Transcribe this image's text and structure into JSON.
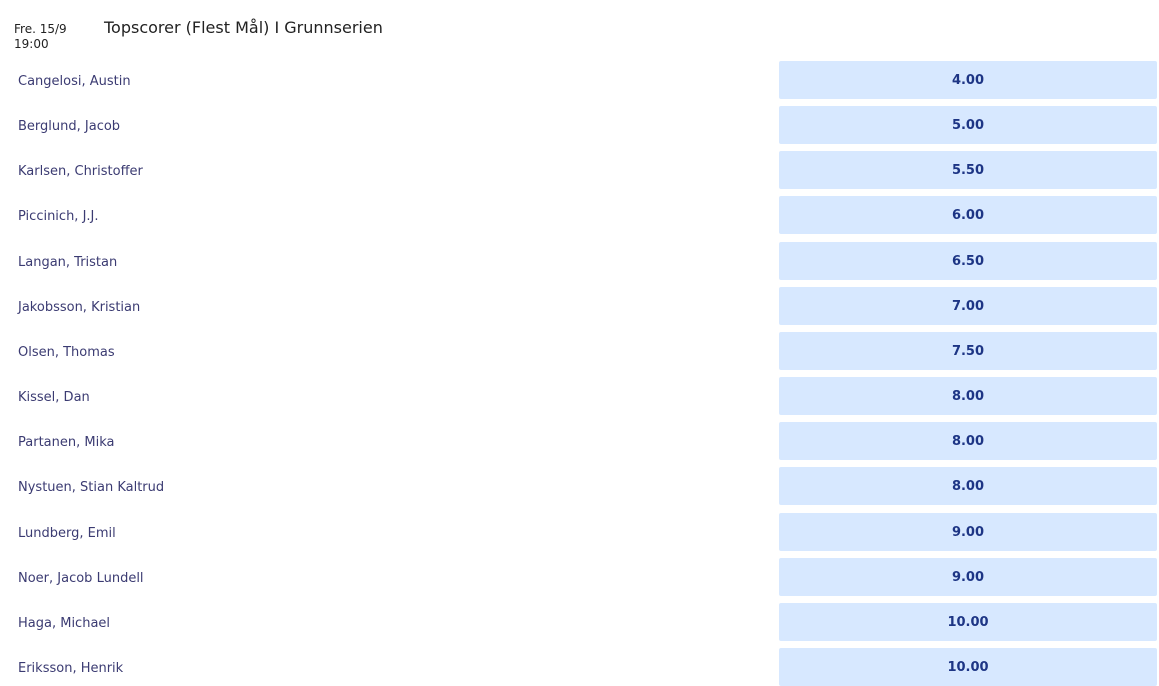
{
  "header": {
    "date": "Fre. 15/9",
    "time": "19:00",
    "title": "Topscorer (Flest Mål) I Grunnserien"
  },
  "rows": [
    {
      "name": "Cangelosi, Austin",
      "odds": "4.00"
    },
    {
      "name": "Berglund, Jacob",
      "odds": "5.00"
    },
    {
      "name": "Karlsen, Christoffer",
      "odds": "5.50"
    },
    {
      "name": "Piccinich, J.J.",
      "odds": "6.00"
    },
    {
      "name": "Langan, Tristan",
      "odds": "6.50"
    },
    {
      "name": "Jakobsson, Kristian",
      "odds": "7.00"
    },
    {
      "name": "Olsen, Thomas",
      "odds": "7.50"
    },
    {
      "name": "Kissel, Dan",
      "odds": "8.00"
    },
    {
      "name": "Partanen, Mika",
      "odds": "8.00"
    },
    {
      "name": "Nystuen, Stian Kaltrud",
      "odds": "8.00"
    },
    {
      "name": "Lundberg, Emil",
      "odds": "9.00"
    },
    {
      "name": "Noer, Jacob Lundell",
      "odds": "9.00"
    },
    {
      "name": "Haga, Michael",
      "odds": "10.00"
    },
    {
      "name": "Eriksson, Henrik",
      "odds": "10.00"
    }
  ]
}
